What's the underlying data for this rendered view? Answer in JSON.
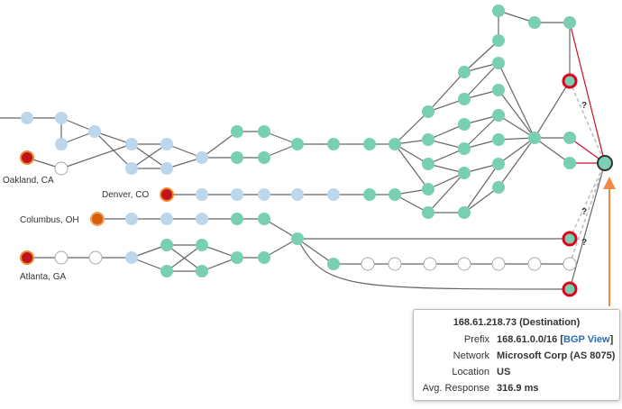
{
  "sources": [
    {
      "label": "Oakland, CA"
    },
    {
      "label": "Denver, CO"
    },
    {
      "label": "Columbus, OH"
    },
    {
      "label": "Atlanta, GA"
    }
  ],
  "unknown_marks": [
    "?",
    "?",
    "?"
  ],
  "tooltip": {
    "title": "168.61.218.73 (Destination)",
    "rows": [
      {
        "key": "Prefix",
        "value": "168.61.0.0/16 [",
        "link": "BGP View",
        "after": "]"
      },
      {
        "key": "Network",
        "value": "Microsoft Corp (AS 8075)"
      },
      {
        "key": "Location",
        "value": "US"
      },
      {
        "key": "Avg. Response",
        "value": "316.9 ms"
      }
    ]
  }
}
